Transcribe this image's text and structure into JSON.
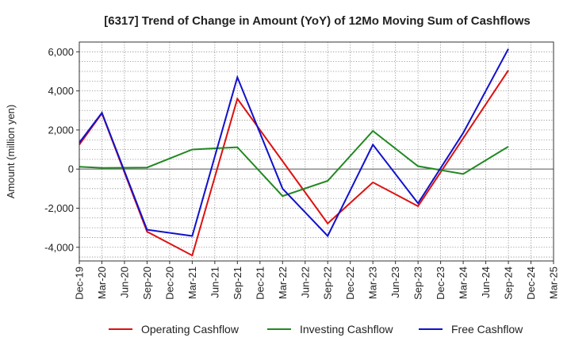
{
  "chart_data": {
    "type": "line",
    "title": "[6317]  Trend of Change in Amount (YoY) of 12Mo Moving Sum of Cashflows",
    "xlabel": "",
    "ylabel": "Amount (million yen)",
    "categories": [
      "Dec-19",
      "Mar-20",
      "Jun-20",
      "Sep-20",
      "Dec-20",
      "Mar-21",
      "Jun-21",
      "Sep-21",
      "Dec-21",
      "Mar-22",
      "Jun-22",
      "Sep-22",
      "Dec-22",
      "Mar-23",
      "Jun-23",
      "Sep-23",
      "Dec-23",
      "Mar-24",
      "Jun-24",
      "Sep-24",
      "Dec-24",
      "Mar-25"
    ],
    "ylim": [
      -4700,
      6500
    ],
    "yticks": [
      -4000,
      -2000,
      0,
      2000,
      4000,
      6000
    ],
    "ytick_labels": [
      "-4,000",
      "-2,000",
      "0",
      "2,000",
      "4,000",
      "6,000"
    ],
    "grid": true,
    "legend_position": "bottom",
    "series": [
      {
        "name": "Operating Cashflow",
        "color": "#dd1111",
        "values": [
          1250,
          2850,
          null,
          -3200,
          null,
          -4420,
          null,
          3600,
          null,
          null,
          null,
          -2780,
          null,
          -680,
          null,
          -1900,
          null,
          null,
          null,
          5050,
          null,
          null
        ]
      },
      {
        "name": "Investing Cashflow",
        "color": "#228822",
        "values": [
          120,
          60,
          null,
          80,
          null,
          1000,
          null,
          1120,
          null,
          -1380,
          null,
          -600,
          null,
          1950,
          null,
          150,
          null,
          -250,
          null,
          1150,
          null,
          null
        ]
      },
      {
        "name": "Free Cashflow",
        "color": "#1111cc",
        "values": [
          1350,
          2880,
          null,
          -3100,
          null,
          -3420,
          null,
          4700,
          null,
          -1000,
          null,
          -3420,
          null,
          1250,
          null,
          -1750,
          null,
          1850,
          null,
          6150,
          null,
          null
        ]
      }
    ]
  }
}
